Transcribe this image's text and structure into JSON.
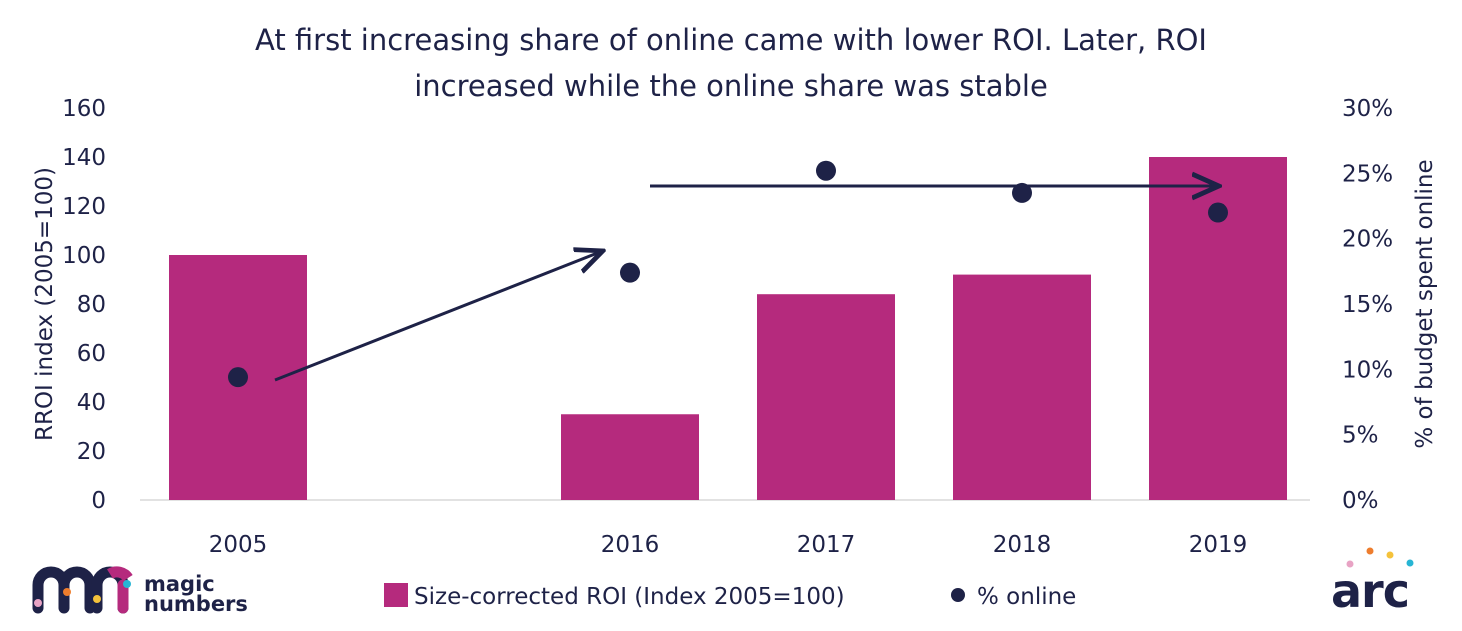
{
  "chart_data": {
    "type": "bar",
    "title": "At first increasing share of online came with lower ROI. Later, ROI increased while the online share was stable",
    "title_lines": [
      "At first increasing share of online came with lower ROI. Later, ROI",
      "increased while the online share was stable"
    ],
    "categories": [
      "2005",
      "",
      "2016",
      "2017",
      "2018",
      "2019"
    ],
    "ylabel": "RROI index (2005=100)",
    "y2label": "% of budget spent online",
    "ylim": [
      0,
      160
    ],
    "y2lim": [
      0,
      30
    ],
    "yticks": [
      "0",
      "20",
      "40",
      "60",
      "80",
      "100",
      "120",
      "140",
      "160"
    ],
    "y2ticks": [
      "0%",
      "5%",
      "10%",
      "15%",
      "20%",
      "25%",
      "30%"
    ],
    "series": [
      {
        "name": "Size-corrected ROI (Index 2005=100)",
        "type": "bar",
        "axis": "left",
        "color": "#b52a7d",
        "values": [
          100,
          null,
          35,
          84,
          92,
          140
        ]
      },
      {
        "name": "% online",
        "type": "scatter",
        "axis": "right",
        "color": "#1e2247",
        "values": [
          9.4,
          null,
          17.4,
          25.2,
          23.5,
          22.0
        ]
      }
    ],
    "legend_position": "bottom",
    "grid": false
  },
  "logos": {
    "left": "magic numbers",
    "right": "arc"
  }
}
